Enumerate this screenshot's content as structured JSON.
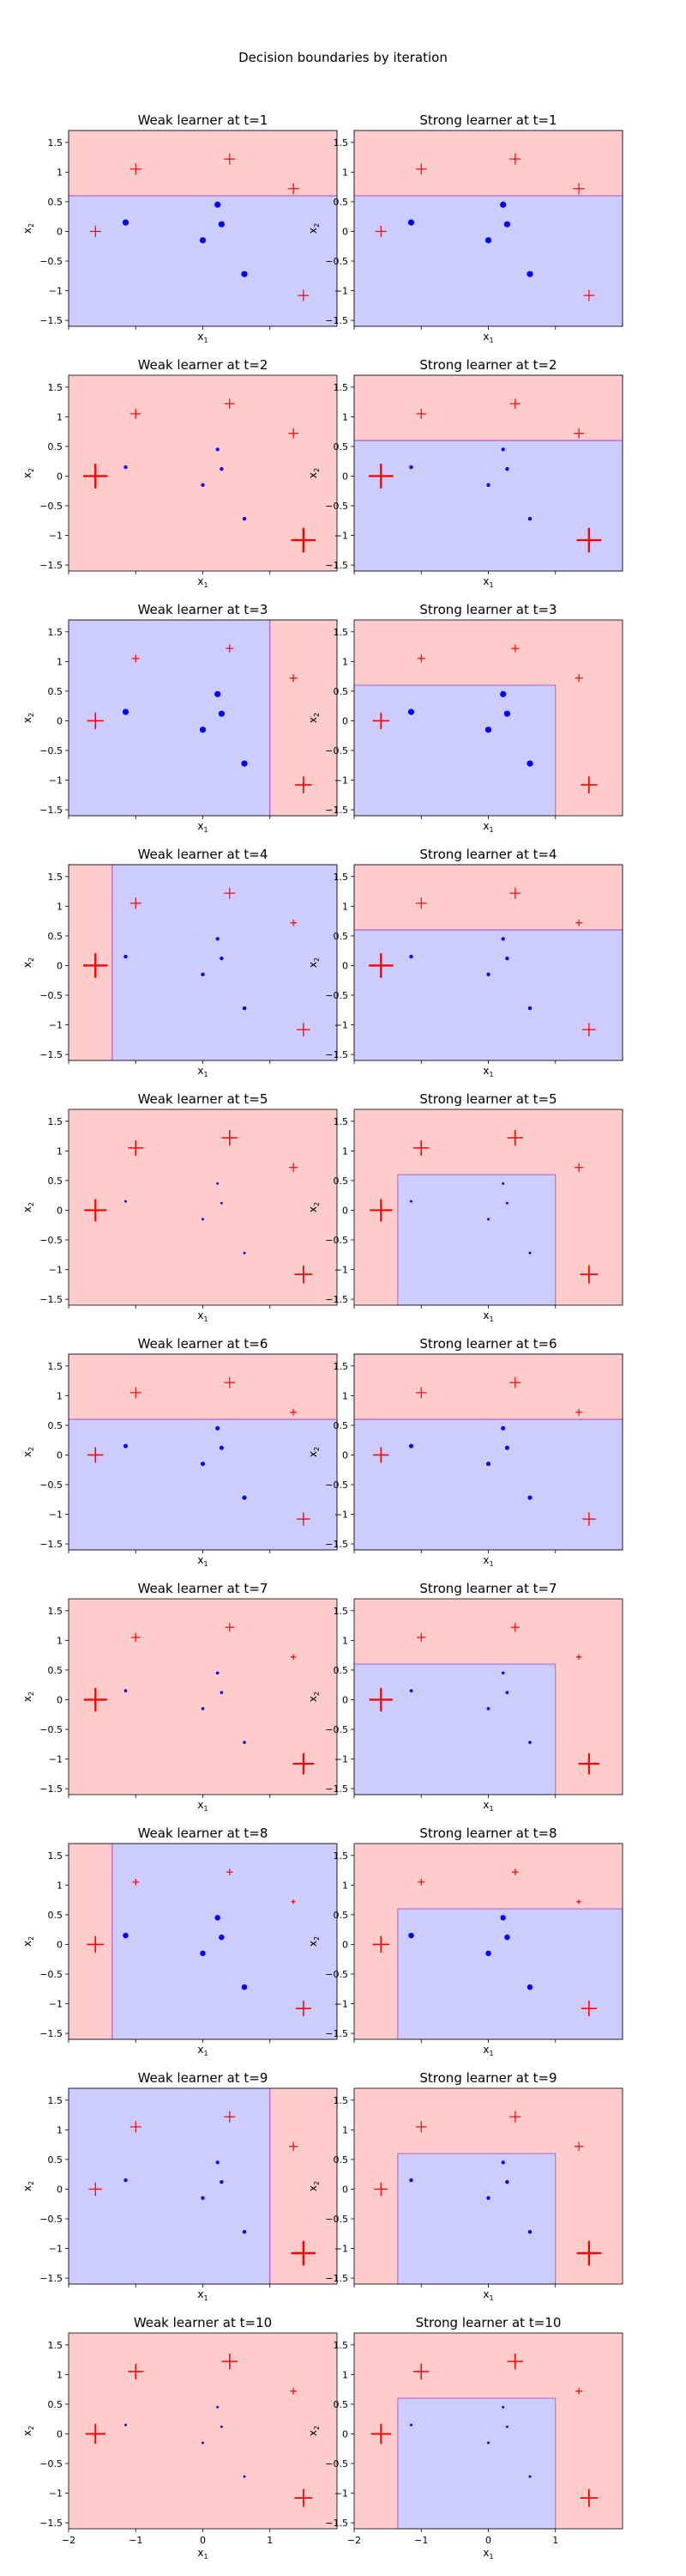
{
  "title": "Decision boundaries by iteration",
  "colors": {
    "positive_region": "#ffcccc",
    "negative_region": "#ccccff",
    "positive_mark": "#ff0000",
    "negative_mark": "#0000ff",
    "boundary": "#b040c0"
  },
  "chart_data": {
    "type": "scatter",
    "xlabel": "x1",
    "ylabel": "x2",
    "xlim": [
      -2,
      2
    ],
    "ylim": [
      -1.6,
      1.7
    ],
    "xticks": [
      -2,
      -1,
      0,
      1
    ],
    "yticks": [
      -1.5,
      -1.0,
      -0.5,
      0.0,
      0.5,
      1.0,
      1.5
    ],
    "x_tick_labels_shown": "bottom row only",
    "grid": false,
    "points": [
      {
        "x": -1.6,
        "y": 0.0,
        "label": "+"
      },
      {
        "x": -1.0,
        "y": 1.05,
        "label": "+"
      },
      {
        "x": 0.4,
        "y": 1.22,
        "label": "+"
      },
      {
        "x": 1.35,
        "y": 0.72,
        "label": "+"
      },
      {
        "x": 1.5,
        "y": -1.08,
        "label": "+"
      },
      {
        "x": -1.15,
        "y": 0.15,
        "label": "-"
      },
      {
        "x": 0.22,
        "y": 0.45,
        "label": "-"
      },
      {
        "x": 0.28,
        "y": 0.12,
        "label": "-"
      },
      {
        "x": 0.0,
        "y": -0.15,
        "label": "-"
      },
      {
        "x": 0.62,
        "y": -0.72,
        "label": "-"
      }
    ],
    "rows": [
      {
        "weak": {
          "title": "Weak learner at t=1",
          "regions": [
            {
              "x": [
                -2,
                2
              ],
              "y": [
                0.6,
                1.7
              ],
              "c": "+"
            },
            {
              "x": [
                -2,
                2
              ],
              "y": [
                -1.6,
                0.6
              ],
              "c": "-"
            }
          ]
        },
        "strong": {
          "title": "Strong learner at t=1",
          "regions": [
            {
              "x": [
                -2,
                2
              ],
              "y": [
                0.6,
                1.7
              ],
              "c": "+"
            },
            {
              "x": [
                -2,
                2
              ],
              "y": [
                -1.6,
                0.6
              ],
              "c": "-"
            }
          ]
        },
        "weights": [
          1,
          1,
          1,
          1,
          1,
          1,
          1,
          1,
          1,
          1
        ]
      },
      {
        "weak": {
          "title": "Weak learner at t=2",
          "regions": [
            {
              "x": [
                -2,
                2
              ],
              "y": [
                -1.6,
                1.7
              ],
              "c": "+"
            }
          ]
        },
        "strong": {
          "title": "Strong learner at t=2",
          "regions": [
            {
              "x": [
                -2,
                2
              ],
              "y": [
                0.6,
                1.7
              ],
              "c": "+"
            },
            {
              "x": [
                -2,
                2
              ],
              "y": [
                -1.6,
                0.6
              ],
              "c": "-"
            }
          ]
        },
        "weights": [
          2.2,
          0.9,
          0.9,
          0.9,
          2.2,
          0.6,
          0.6,
          0.6,
          0.6,
          0.6
        ]
      },
      {
        "weak": {
          "title": "Weak learner at t=3",
          "regions": [
            {
              "x": [
                -2,
                1
              ],
              "y": [
                -1.6,
                1.7
              ],
              "c": "-"
            },
            {
              "x": [
                1,
                2
              ],
              "y": [
                -1.6,
                1.7
              ],
              "c": "+"
            }
          ]
        },
        "strong": {
          "title": "Strong learner at t=3",
          "regions": [
            {
              "x": [
                -2,
                2
              ],
              "y": [
                -1.6,
                1.7
              ],
              "c": "+"
            },
            {
              "x": [
                -2,
                1
              ],
              "y": [
                -1.6,
                0.6
              ],
              "c": "-"
            }
          ]
        },
        "weights": [
          1.5,
          0.7,
          0.7,
          0.7,
          1.5,
          1.0,
          1.0,
          1.0,
          1.0,
          1.0
        ]
      },
      {
        "weak": {
          "title": "Weak learner at t=4",
          "regions": [
            {
              "x": [
                -2,
                -1.35
              ],
              "y": [
                -1.6,
                1.7
              ],
              "c": "+"
            },
            {
              "x": [
                -1.35,
                2
              ],
              "y": [
                -1.6,
                1.7
              ],
              "c": "-"
            }
          ]
        },
        "strong": {
          "title": "Strong learner at t=4",
          "regions": [
            {
              "x": [
                -2,
                2
              ],
              "y": [
                0.6,
                1.7
              ],
              "c": "+"
            },
            {
              "x": [
                -2,
                2
              ],
              "y": [
                -1.6,
                0.6
              ],
              "c": "-"
            }
          ]
        },
        "weights": [
          2.2,
          1.0,
          1.0,
          0.6,
          1.2,
          0.6,
          0.6,
          0.6,
          0.6,
          0.6
        ]
      },
      {
        "weak": {
          "title": "Weak learner at t=5",
          "regions": [
            {
              "x": [
                -2,
                2
              ],
              "y": [
                -1.6,
                1.7
              ],
              "c": "+"
            }
          ]
        },
        "strong": {
          "title": "Strong learner at t=5",
          "regions": [
            {
              "x": [
                -2,
                2
              ],
              "y": [
                -1.6,
                1.7
              ],
              "c": "+"
            },
            {
              "x": [
                -1.35,
                1
              ],
              "y": [
                -1.6,
                0.6
              ],
              "c": "-"
            }
          ]
        },
        "weights": [
          2.0,
          1.4,
          1.4,
          0.8,
          1.6,
          0.4,
          0.4,
          0.4,
          0.4,
          0.4
        ]
      },
      {
        "weak": {
          "title": "Weak learner at t=6",
          "regions": [
            {
              "x": [
                -2,
                2
              ],
              "y": [
                0.6,
                1.7
              ],
              "c": "+"
            },
            {
              "x": [
                -2,
                2
              ],
              "y": [
                -1.6,
                0.6
              ],
              "c": "-"
            }
          ]
        },
        "strong": {
          "title": "Strong learner at t=6",
          "regions": [
            {
              "x": [
                -2,
                2
              ],
              "y": [
                0.6,
                1.7
              ],
              "c": "+"
            },
            {
              "x": [
                -2,
                2
              ],
              "y": [
                -1.6,
                0.6
              ],
              "c": "-"
            }
          ]
        },
        "weights": [
          1.4,
          1.0,
          1.0,
          0.6,
          1.2,
          0.7,
          0.7,
          0.7,
          0.7,
          0.7
        ]
      },
      {
        "weak": {
          "title": "Weak learner at t=7",
          "regions": [
            {
              "x": [
                -2,
                2
              ],
              "y": [
                -1.6,
                1.7
              ],
              "c": "+"
            }
          ]
        },
        "strong": {
          "title": "Strong learner at t=7",
          "regions": [
            {
              "x": [
                -2,
                2
              ],
              "y": [
                -1.6,
                1.7
              ],
              "c": "+"
            },
            {
              "x": [
                -2,
                1
              ],
              "y": [
                -1.6,
                0.6
              ],
              "c": "-"
            }
          ]
        },
        "weights": [
          2.1,
          0.8,
          0.8,
          0.5,
          1.9,
          0.5,
          0.5,
          0.5,
          0.5,
          0.5
        ]
      },
      {
        "weak": {
          "title": "Weak learner at t=8",
          "regions": [
            {
              "x": [
                -2,
                -1.35
              ],
              "y": [
                -1.6,
                1.7
              ],
              "c": "+"
            },
            {
              "x": [
                -1.35,
                2
              ],
              "y": [
                -1.6,
                1.7
              ],
              "c": "-"
            }
          ]
        },
        "strong": {
          "title": "Strong learner at t=8",
          "regions": [
            {
              "x": [
                -2,
                2
              ],
              "y": [
                -1.6,
                1.7
              ],
              "c": "+"
            },
            {
              "x": [
                -1.35,
                2
              ],
              "y": [
                -1.6,
                0.6
              ],
              "c": "-"
            }
          ]
        },
        "weights": [
          1.5,
          0.6,
          0.6,
          0.4,
          1.4,
          0.9,
          0.9,
          0.9,
          0.9,
          0.9
        ]
      },
      {
        "weak": {
          "title": "Weak learner at t=9",
          "regions": [
            {
              "x": [
                -2,
                1
              ],
              "y": [
                -1.6,
                1.7
              ],
              "c": "-"
            },
            {
              "x": [
                1,
                2
              ],
              "y": [
                -1.6,
                1.7
              ],
              "c": "+"
            }
          ]
        },
        "strong": {
          "title": "Strong learner at t=9",
          "regions": [
            {
              "x": [
                -2,
                2
              ],
              "y": [
                -1.6,
                1.7
              ],
              "c": "+"
            },
            {
              "x": [
                -1.35,
                1
              ],
              "y": [
                -1.6,
                0.6
              ],
              "c": "-"
            }
          ]
        },
        "weights": [
          1.2,
          1.0,
          1.0,
          0.8,
          2.2,
          0.6,
          0.6,
          0.6,
          0.6,
          0.6
        ]
      },
      {
        "weak": {
          "title": "Weak learner at t=10",
          "regions": [
            {
              "x": [
                -2,
                2
              ],
              "y": [
                -1.6,
                1.7
              ],
              "c": "+"
            }
          ]
        },
        "strong": {
          "title": "Strong learner at t=10",
          "regions": [
            {
              "x": [
                -2,
                2
              ],
              "y": [
                -1.6,
                1.7
              ],
              "c": "+"
            },
            {
              "x": [
                -1.35,
                1
              ],
              "y": [
                -1.6,
                0.6
              ],
              "c": "-"
            }
          ]
        },
        "weights": [
          1.8,
          1.4,
          1.4,
          0.6,
          1.6,
          0.4,
          0.4,
          0.4,
          0.4,
          0.4
        ]
      }
    ]
  }
}
